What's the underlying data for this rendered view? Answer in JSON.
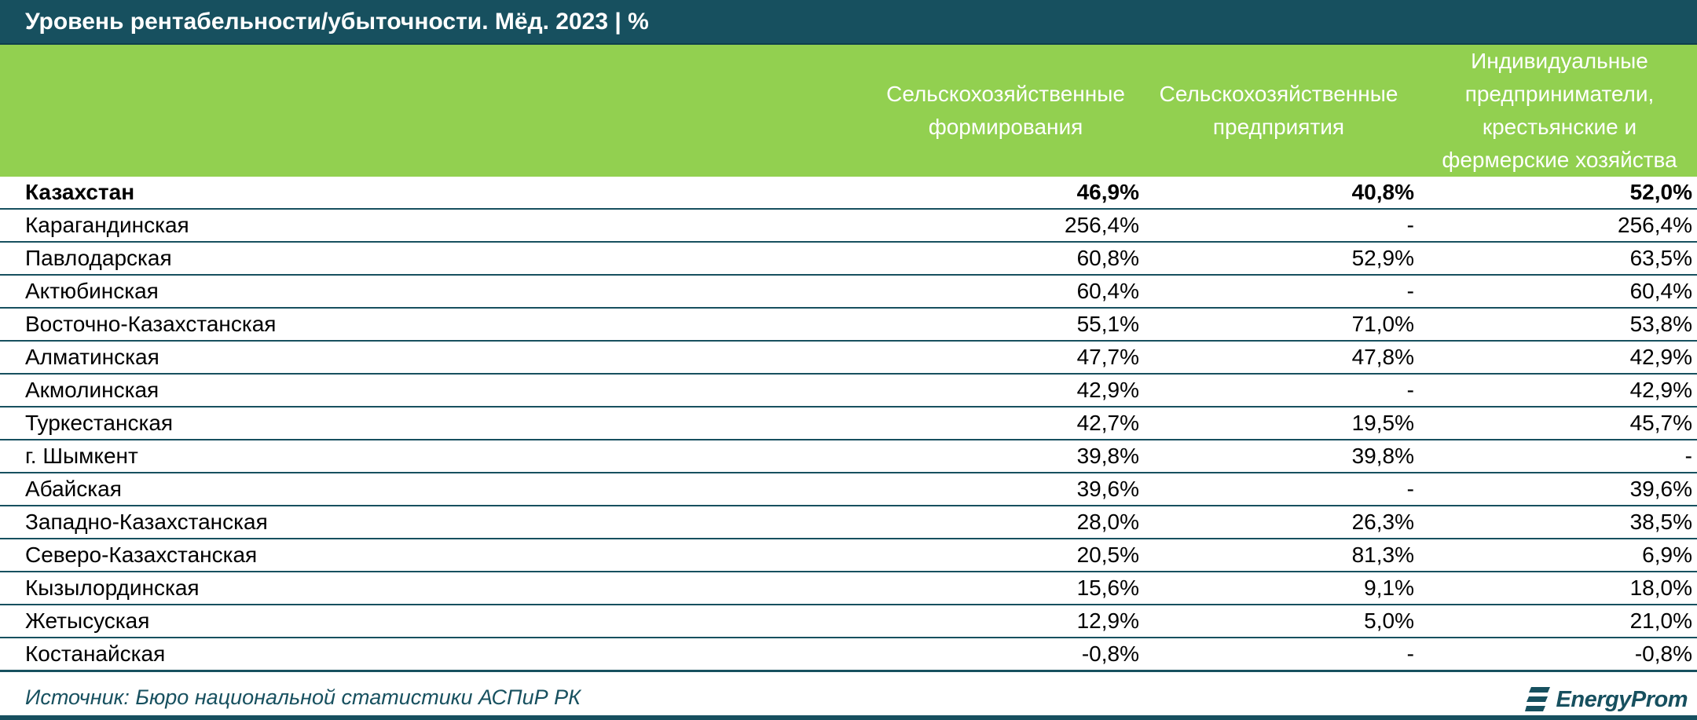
{
  "title": "Уровень рентабельности/убыточности. Мёд. 2023 | %",
  "colors": {
    "title_bg": "#17505f",
    "header_bg": "#92d050",
    "accent": "#17505f"
  },
  "columns": [
    {
      "lines": [
        "Сельскохозяйственные",
        "формирования"
      ]
    },
    {
      "lines": [
        "Сельскохозяйственные",
        "предприятия"
      ]
    },
    {
      "lines": [
        "Индивидуальные",
        "предприниматели,",
        "крестьянские и",
        "фермерские хозяйства"
      ]
    }
  ],
  "rows": [
    {
      "name": "Казахстан",
      "v1": "46,9%",
      "v2": "40,8%",
      "v3": "52,0%"
    },
    {
      "name": "Карагандинская",
      "v1": "256,4%",
      "v2": "-",
      "v3": "256,4%"
    },
    {
      "name": "Павлодарская",
      "v1": "60,8%",
      "v2": "52,9%",
      "v3": "63,5%"
    },
    {
      "name": "Актюбинская",
      "v1": "60,4%",
      "v2": "-",
      "v3": "60,4%"
    },
    {
      "name": "Восточно-Казахстанская",
      "v1": "55,1%",
      "v2": "71,0%",
      "v3": "53,8%"
    },
    {
      "name": "Алматинская",
      "v1": "47,7%",
      "v2": "47,8%",
      "v3": "42,9%"
    },
    {
      "name": "Акмолинская",
      "v1": "42,9%",
      "v2": "-",
      "v3": "42,9%"
    },
    {
      "name": "Туркестанская",
      "v1": "42,7%",
      "v2": "19,5%",
      "v3": "45,7%"
    },
    {
      "name": "г. Шымкент",
      "v1": "39,8%",
      "v2": "39,8%",
      "v3": "-"
    },
    {
      "name": "Абайская",
      "v1": "39,6%",
      "v2": "-",
      "v3": "39,6%"
    },
    {
      "name": "Западно-Казахстанская",
      "v1": "28,0%",
      "v2": "26,3%",
      "v3": "38,5%"
    },
    {
      "name": "Северо-Казахстанская",
      "v1": "20,5%",
      "v2": "81,3%",
      "v3": "6,9%"
    },
    {
      "name": "Кызылординская",
      "v1": "15,6%",
      "v2": "9,1%",
      "v3": "18,0%"
    },
    {
      "name": "Жетысуская",
      "v1": "12,9%",
      "v2": "5,0%",
      "v3": "21,0%"
    },
    {
      "name": "Костанайская",
      "v1": "-0,8%",
      "v2": "-",
      "v3": "-0,8%"
    }
  ],
  "source": "Источник: Бюро национальной статистики АСПиР РК",
  "logo": {
    "text": "EnergyProm",
    "icon": "energyprom-logo-icon"
  },
  "chart_data": {
    "type": "table",
    "title": "Уровень рентабельности/убыточности. Мёд. 2023 | %",
    "columns": [
      "Сельскохозяйственные формирования",
      "Сельскохозяйственные предприятия",
      "Индивидуальные предприниматели, крестьянские и фермерские хозяйства"
    ],
    "categories": [
      "Казахстан",
      "Карагандинская",
      "Павлодарская",
      "Актюбинская",
      "Восточно-Казахстанская",
      "Алматинская",
      "Акмолинская",
      "Туркестанская",
      "г. Шымкент",
      "Абайская",
      "Западно-Казахстанская",
      "Северо-Казахстанская",
      "Кызылординская",
      "Жетысуская",
      "Костанайская"
    ],
    "series": [
      {
        "name": "Сельскохозяйственные формирования",
        "values": [
          46.9,
          256.4,
          60.8,
          60.4,
          55.1,
          47.7,
          42.9,
          42.7,
          39.8,
          39.6,
          28.0,
          20.5,
          15.6,
          12.9,
          -0.8
        ]
      },
      {
        "name": "Сельскохозяйственные предприятия",
        "values": [
          40.8,
          null,
          52.9,
          null,
          71.0,
          47.8,
          null,
          19.5,
          39.8,
          null,
          26.3,
          81.3,
          9.1,
          5.0,
          null
        ]
      },
      {
        "name": "Индивидуальные предприниматели, крестьянские и фермерские хозяйства",
        "values": [
          52.0,
          256.4,
          63.5,
          60.4,
          53.8,
          42.9,
          42.9,
          45.7,
          null,
          39.6,
          38.5,
          6.9,
          18.0,
          21.0,
          -0.8
        ]
      }
    ],
    "unit": "%"
  }
}
